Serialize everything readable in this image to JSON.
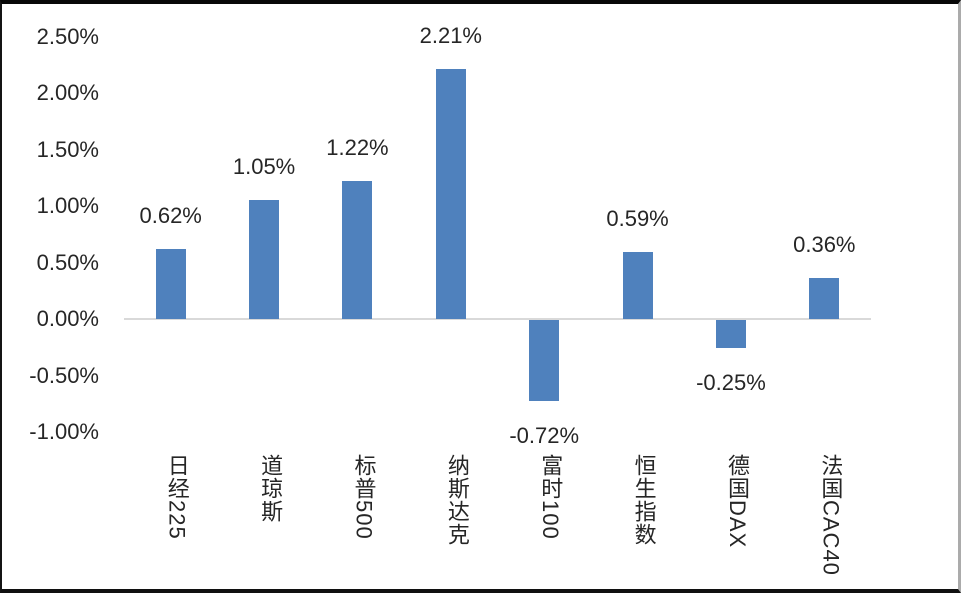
{
  "chart_data": {
    "type": "bar",
    "title": "",
    "xlabel": "",
    "ylabel": "",
    "categories": [
      "日经225",
      "道琼斯",
      "标普500",
      "纳斯达克",
      "富时100",
      "恒生指数",
      "德国DAX",
      "法国CAC40"
    ],
    "values": [
      0.62,
      1.05,
      1.22,
      2.21,
      -0.72,
      0.59,
      -0.25,
      0.36
    ],
    "data_labels": [
      "0.62%",
      "1.05%",
      "1.22%",
      "2.21%",
      "-0.72%",
      "0.59%",
      "-0.25%",
      "0.36%"
    ],
    "y_ticks": [
      {
        "label": "2.50%",
        "value": 2.5
      },
      {
        "label": "2.00%",
        "value": 2.0
      },
      {
        "label": "1.50%",
        "value": 1.5
      },
      {
        "label": "1.00%",
        "value": 1.0
      },
      {
        "label": "0.50%",
        "value": 0.5
      },
      {
        "label": "0.00%",
        "value": 0.0
      },
      {
        "label": "-0.50%",
        "value": -0.5
      },
      {
        "label": "-1.00%",
        "value": -1.0
      }
    ],
    "ylim": [
      -1.0,
      2.5
    ],
    "grid": false,
    "legend": "none",
    "colors": {
      "bar": "#4F81BD",
      "axis_line": "#D9D9D9",
      "text": "#262626",
      "background": "#FFFFFF"
    }
  }
}
